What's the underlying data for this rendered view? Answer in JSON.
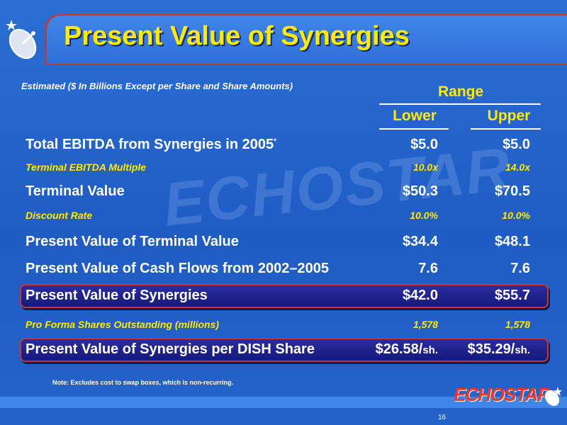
{
  "slide": {
    "title": "Present Value of Synergies",
    "subtitle": "Estimated ($ In Billions Except per Share and Share Amounts)",
    "range_label": "Range",
    "columns": [
      "Lower",
      "Upper"
    ],
    "rows": [
      {
        "label": "Total EBITDA from Synergies in 2005",
        "marker": "*",
        "lower": "$5.0",
        "upper": "$5.0",
        "style": "big"
      },
      {
        "label": "Terminal EBITDA Multiple",
        "lower": "10.0x",
        "upper": "14.0x",
        "style": "small"
      },
      {
        "label": "Terminal Value",
        "lower": "$50.3",
        "upper": "$70.5",
        "style": "big"
      },
      {
        "label": "Discount Rate",
        "lower": "10.0%",
        "upper": "10.0%",
        "style": "small"
      },
      {
        "label": "Present Value of Terminal Value",
        "lower": "$34.4",
        "upper": "$48.1",
        "style": "big"
      },
      {
        "label": "Present Value of Cash Flows from 2002–2005",
        "lower": "7.6",
        "upper": "7.6",
        "style": "big"
      },
      {
        "label": "Present Value of Synergies",
        "lower": "$42.0",
        "upper": "$55.7",
        "style": "big",
        "highlight": true
      },
      {
        "label": "Pro Forma Shares Outstanding (millions)",
        "lower": "1,578",
        "upper": "1,578",
        "style": "small"
      },
      {
        "label": "Present Value of Synergies per DISH Share",
        "lower": "$26.58/",
        "upper": "$35.29/",
        "unit": "sh.",
        "style": "big",
        "highlight": true
      }
    ],
    "note": "Note:   Excludes cost to swap boxes, which is non-recurring.",
    "logo_text": "ECHOSTAR",
    "watermark_text": "ECHOSTAR",
    "page_number": "16",
    "colors": {
      "background": "#2463c9",
      "accent_yellow": "#ffea00",
      "accent_red": "#c7372c",
      "highlight_box": "#16197a"
    }
  }
}
